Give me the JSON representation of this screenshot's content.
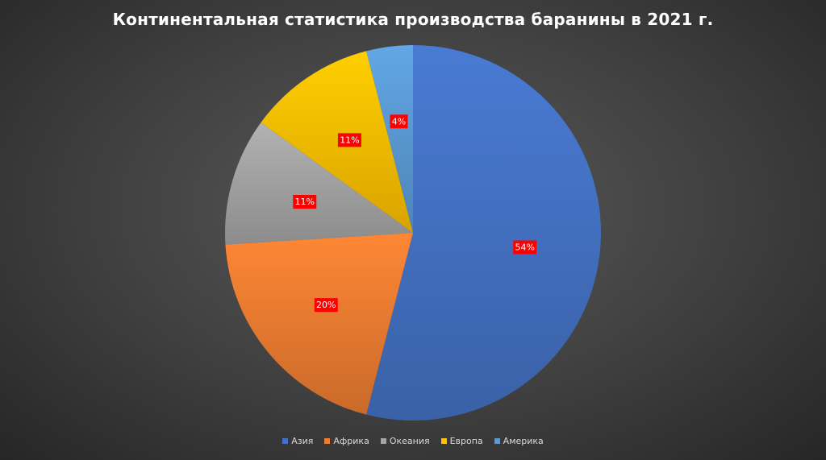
{
  "chart_data": {
    "type": "pie",
    "title": "Континентальная статистика производства баранины в 2021 г.",
    "legend_position": "bottom",
    "slices": [
      {
        "name": "Азия",
        "value": 54,
        "label": "54%",
        "color": "#4472c4"
      },
      {
        "name": "Африка",
        "value": 20,
        "label": "20%",
        "color": "#ed7d31"
      },
      {
        "name": "Океания",
        "value": 11,
        "label": "11%",
        "color": "#a5a5a5"
      },
      {
        "name": "Европа",
        "value": 11,
        "label": "11%",
        "color": "#ffc000"
      },
      {
        "name": "Америка",
        "value": 4,
        "label": "4%",
        "color": "#5b9bd5"
      }
    ]
  }
}
